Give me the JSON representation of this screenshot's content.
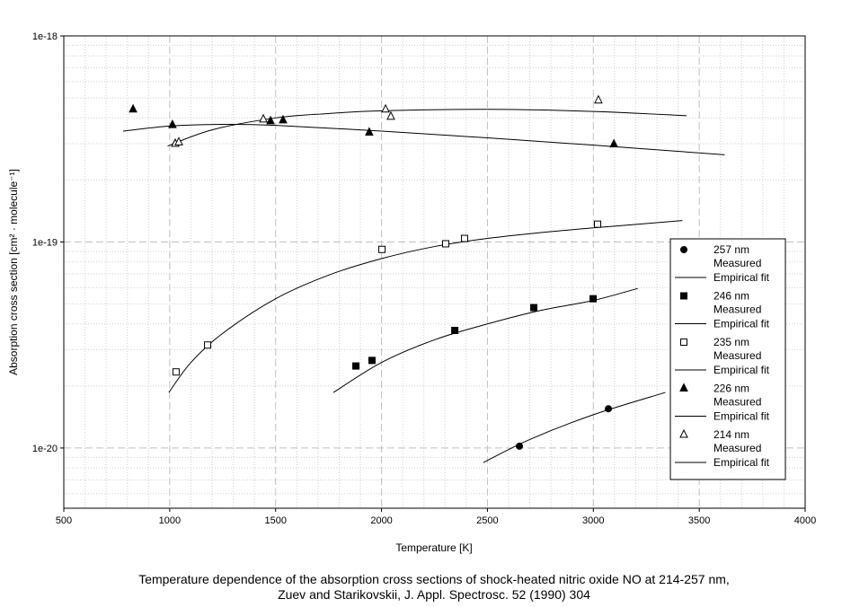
{
  "chart_data": {
    "type": "scatter",
    "title": "",
    "xlabel": "Temperature [K]",
    "ylabel": "Absorption cross section [cm² · molecule⁻¹]",
    "ylabel_parts": {
      "a": "Absorption cross section [cm",
      "b": "2",
      "c": " · molecule",
      "d": "-1",
      "e": "]"
    },
    "xlim": [
      500,
      4000
    ],
    "ylim": [
      5.1e-21,
      1e-18
    ],
    "yscale": "log",
    "grid": true,
    "xticks": [
      500,
      1000,
      1500,
      2000,
      2500,
      3000,
      3500,
      4000
    ],
    "xtick_labels": [
      "500",
      "1000",
      "1500",
      "2000",
      "2500",
      "3000",
      "3500",
      "4000"
    ],
    "yticks": [
      1e-18,
      1e-19,
      1e-20
    ],
    "ytick_labels": [
      "1e-18",
      "1e-19",
      "1e-20"
    ],
    "legend_position": "right",
    "series": [
      {
        "name": "257 nm",
        "measured_label": "Measured",
        "fit_label": "Empirical fit",
        "marker": "circle-filled",
        "measured": [
          [
            2651,
            1.02e-20
          ],
          [
            3071,
            1.55e-20
          ]
        ],
        "fit": [
          [
            2481,
            8.5e-21
          ],
          [
            2700,
            1.1e-20
          ],
          [
            3000,
            1.45e-20
          ],
          [
            3340,
            1.86e-20
          ]
        ]
      },
      {
        "name": "246 nm",
        "measured_label": "Measured",
        "fit_label": "Empirical fit",
        "marker": "square-filled",
        "measured": [
          [
            1879,
            2.5e-20
          ],
          [
            1955,
            2.66e-20
          ],
          [
            2346,
            3.72e-20
          ],
          [
            2719,
            4.8e-20
          ],
          [
            2999,
            5.3e-20
          ]
        ],
        "fit": [
          [
            1773,
            1.86e-20
          ],
          [
            2000,
            2.6e-20
          ],
          [
            2250,
            3.35e-20
          ],
          [
            2500,
            4e-20
          ],
          [
            2750,
            4.65e-20
          ],
          [
            3000,
            5.2e-20
          ],
          [
            3210,
            5.95e-20
          ]
        ]
      },
      {
        "name": "235 nm",
        "measured_label": "Measured",
        "fit_label": "Empirical fit",
        "marker": "square-open",
        "measured": [
          [
            1030,
            2.34e-20
          ],
          [
            1179,
            3.16e-20
          ],
          [
            2002,
            9.2e-20
          ],
          [
            2303,
            9.8e-20
          ],
          [
            2392,
            1.04e-19
          ],
          [
            3020,
            1.22e-19
          ]
        ],
        "fit": [
          [
            996,
            1.86e-20
          ],
          [
            1100,
            2.6e-20
          ],
          [
            1250,
            3.6e-20
          ],
          [
            1500,
            5.3e-20
          ],
          [
            1750,
            6.9e-20
          ],
          [
            2000,
            8.3e-20
          ],
          [
            2250,
            9.5e-20
          ],
          [
            2500,
            1.04e-19
          ],
          [
            2750,
            1.11e-19
          ],
          [
            3000,
            1.17e-19
          ],
          [
            3420,
            1.27e-19
          ]
        ]
      },
      {
        "name": "226 nm",
        "measured_label": "Measured",
        "fit_label": "Empirical fit",
        "marker": "triangle-filled",
        "measured": [
          [
            827,
            4.4e-19
          ],
          [
            1013,
            3.7e-19
          ],
          [
            1476,
            3.86e-19
          ],
          [
            1535,
            3.9e-19
          ],
          [
            1942,
            3.4e-19
          ],
          [
            3097,
            2.98e-19
          ]
        ],
        "fit": [
          [
            780,
            3.45e-19
          ],
          [
            1000,
            3.65e-19
          ],
          [
            1250,
            3.72e-19
          ],
          [
            1500,
            3.68e-19
          ],
          [
            2000,
            3.45e-19
          ],
          [
            2500,
            3.2e-19
          ],
          [
            3000,
            2.95e-19
          ],
          [
            3620,
            2.65e-19
          ]
        ]
      },
      {
        "name": "214 nm",
        "measured_label": "Measured",
        "fit_label": "Empirical fit",
        "marker": "triangle-open",
        "measured": [
          [
            1026,
            3e-19
          ],
          [
            1043,
            3.05e-19
          ],
          [
            1442,
            3.94e-19
          ],
          [
            2019,
            4.4e-19
          ],
          [
            2044,
            4.06e-19
          ],
          [
            3024,
            4.87e-19
          ]
        ],
        "fit": [
          [
            990,
            2.92e-19
          ],
          [
            1200,
            3.5e-19
          ],
          [
            1500,
            4e-19
          ],
          [
            1750,
            4.2e-19
          ],
          [
            2000,
            4.33e-19
          ],
          [
            2500,
            4.4e-19
          ],
          [
            3000,
            4.3e-19
          ],
          [
            3440,
            4.1e-19
          ]
        ]
      }
    ]
  },
  "caption": {
    "line1": "Temperature dependence of the absorption cross sections of shock-heated nitric oxide NO at 214-257 nm,",
    "line2": "Zuev and Starikovskii, J. Appl. Spectrosc. 52 (1990) 304"
  }
}
